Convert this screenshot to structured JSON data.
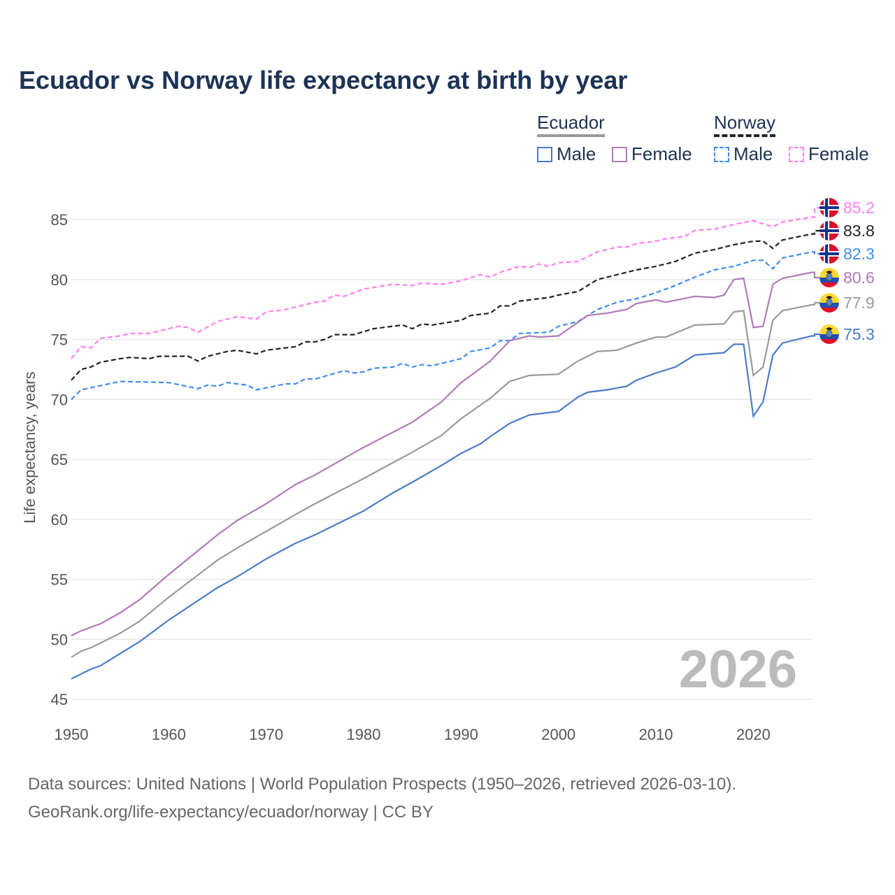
{
  "chart_data": {
    "type": "line",
    "title": "Ecuador vs Norway life expectancy at birth by year",
    "xlabel": "",
    "ylabel": "Life expectancy, years",
    "xlim": [
      1950,
      2026
    ],
    "ylim": [
      45,
      85
    ],
    "x_ticks": [
      "1950",
      "1960",
      "1970",
      "1980",
      "1990",
      "2000",
      "2010",
      "2020"
    ],
    "y_ticks": [
      "45",
      "50",
      "55",
      "60",
      "65",
      "70",
      "75",
      "80",
      "85"
    ],
    "grid": true,
    "year_watermark": "2026",
    "legend": {
      "placement": "top-right",
      "groups": [
        {
          "country": "Ecuador",
          "items": [
            "Male",
            "Female"
          ]
        },
        {
          "country": "Norway",
          "items": [
            "Male",
            "Female"
          ]
        }
      ]
    },
    "series": [
      {
        "name": "Norway Female",
        "country": "Norway",
        "color": "#ff80ee",
        "dashed": true,
        "end_label": "85.2",
        "points": [
          [
            1950,
            73.4
          ],
          [
            1951,
            74.4
          ],
          [
            1952,
            74.3
          ],
          [
            1953,
            75.1
          ],
          [
            1955,
            75.3
          ],
          [
            1956,
            75.5
          ],
          [
            1958,
            75.5
          ],
          [
            1961,
            76.1
          ],
          [
            1962,
            76.0
          ],
          [
            1963,
            75.6
          ],
          [
            1965,
            76.5
          ],
          [
            1967,
            76.9
          ],
          [
            1969,
            76.7
          ],
          [
            1970,
            77.3
          ],
          [
            1972,
            77.5
          ],
          [
            1975,
            78.1
          ],
          [
            1976,
            78.2
          ],
          [
            1977,
            78.7
          ],
          [
            1978,
            78.6
          ],
          [
            1980,
            79.2
          ],
          [
            1983,
            79.6
          ],
          [
            1985,
            79.5
          ],
          [
            1986,
            79.7
          ],
          [
            1988,
            79.6
          ],
          [
            1990,
            79.9
          ],
          [
            1992,
            80.4
          ],
          [
            1993,
            80.2
          ],
          [
            1994,
            80.6
          ],
          [
            1996,
            81.1
          ],
          [
            1997,
            81.0
          ],
          [
            1998,
            81.3
          ],
          [
            1999,
            81.1
          ],
          [
            2000,
            81.4
          ],
          [
            2002,
            81.5
          ],
          [
            2004,
            82.3
          ],
          [
            2006,
            82.7
          ],
          [
            2007,
            82.7
          ],
          [
            2008,
            83.0
          ],
          [
            2010,
            83.2
          ],
          [
            2011,
            83.4
          ],
          [
            2013,
            83.6
          ],
          [
            2014,
            84.1
          ],
          [
            2016,
            84.2
          ],
          [
            2018,
            84.6
          ],
          [
            2020,
            84.9
          ],
          [
            2022,
            84.4
          ],
          [
            2023,
            84.8
          ],
          [
            2026,
            85.2
          ]
        ]
      },
      {
        "name": "Norway Total",
        "country": "Norway",
        "color": "#222222",
        "dashed": true,
        "end_label": "83.8",
        "points": [
          [
            1950,
            71.6
          ],
          [
            1951,
            72.5
          ],
          [
            1952,
            72.7
          ],
          [
            1953,
            73.1
          ],
          [
            1955,
            73.4
          ],
          [
            1956,
            73.5
          ],
          [
            1958,
            73.4
          ],
          [
            1959,
            73.6
          ],
          [
            1962,
            73.6
          ],
          [
            1963,
            73.2
          ],
          [
            1964,
            73.6
          ],
          [
            1966,
            74.0
          ],
          [
            1967,
            74.1
          ],
          [
            1969,
            73.8
          ],
          [
            1970,
            74.1
          ],
          [
            1973,
            74.4
          ],
          [
            1974,
            74.8
          ],
          [
            1975,
            74.8
          ],
          [
            1976,
            75.0
          ],
          [
            1977,
            75.4
          ],
          [
            1979,
            75.4
          ],
          [
            1981,
            75.9
          ],
          [
            1984,
            76.2
          ],
          [
            1985,
            75.9
          ],
          [
            1986,
            76.3
          ],
          [
            1987,
            76.2
          ],
          [
            1990,
            76.6
          ],
          [
            1991,
            77.0
          ],
          [
            1993,
            77.2
          ],
          [
            1994,
            77.8
          ],
          [
            1995,
            77.8
          ],
          [
            1996,
            78.2
          ],
          [
            1998,
            78.4
          ],
          [
            1999,
            78.5
          ],
          [
            2000,
            78.7
          ],
          [
            2002,
            79.0
          ],
          [
            2004,
            80.0
          ],
          [
            2006,
            80.4
          ],
          [
            2008,
            80.8
          ],
          [
            2010,
            81.1
          ],
          [
            2012,
            81.5
          ],
          [
            2014,
            82.2
          ],
          [
            2016,
            82.5
          ],
          [
            2018,
            82.9
          ],
          [
            2020,
            83.2
          ],
          [
            2021,
            83.2
          ],
          [
            2022,
            82.6
          ],
          [
            2023,
            83.3
          ],
          [
            2026,
            83.8
          ]
        ]
      },
      {
        "name": "Norway Male",
        "country": "Norway",
        "color": "#3d8ef0",
        "dashed": true,
        "end_label": "82.3",
        "points": [
          [
            1950,
            70.0
          ],
          [
            1951,
            70.8
          ],
          [
            1955,
            71.5
          ],
          [
            1960,
            71.4
          ],
          [
            1963,
            70.9
          ],
          [
            1964,
            71.2
          ],
          [
            1965,
            71.1
          ],
          [
            1966,
            71.4
          ],
          [
            1968,
            71.2
          ],
          [
            1969,
            70.8
          ],
          [
            1972,
            71.3
          ],
          [
            1973,
            71.3
          ],
          [
            1974,
            71.7
          ],
          [
            1975,
            71.7
          ],
          [
            1978,
            72.4
          ],
          [
            1979,
            72.2
          ],
          [
            1980,
            72.3
          ],
          [
            1981,
            72.6
          ],
          [
            1983,
            72.7
          ],
          [
            1984,
            73.0
          ],
          [
            1985,
            72.7
          ],
          [
            1986,
            72.9
          ],
          [
            1987,
            72.8
          ],
          [
            1990,
            73.4
          ],
          [
            1991,
            74.0
          ],
          [
            1993,
            74.3
          ],
          [
            1994,
            74.9
          ],
          [
            1995,
            74.9
          ],
          [
            1996,
            75.5
          ],
          [
            1999,
            75.6
          ],
          [
            2000,
            76.1
          ],
          [
            2002,
            76.5
          ],
          [
            2004,
            77.5
          ],
          [
            2006,
            78.1
          ],
          [
            2008,
            78.4
          ],
          [
            2010,
            78.9
          ],
          [
            2012,
            79.5
          ],
          [
            2014,
            80.2
          ],
          [
            2016,
            80.8
          ],
          [
            2018,
            81.1
          ],
          [
            2020,
            81.6
          ],
          [
            2021,
            81.6
          ],
          [
            2022,
            80.9
          ],
          [
            2023,
            81.8
          ],
          [
            2026,
            82.3
          ]
        ]
      },
      {
        "name": "Ecuador Female",
        "country": "Ecuador",
        "color": "#b07ab8",
        "dashed": false,
        "end_label": "80.6",
        "points": [
          [
            1950,
            50.3
          ],
          [
            1951,
            50.7
          ],
          [
            1953,
            51.3
          ],
          [
            1955,
            52.2
          ],
          [
            1957,
            53.3
          ],
          [
            1960,
            55.4
          ],
          [
            1965,
            58.7
          ],
          [
            1967,
            59.9
          ],
          [
            1970,
            61.3
          ],
          [
            1973,
            62.9
          ],
          [
            1975,
            63.7
          ],
          [
            1980,
            66.0
          ],
          [
            1985,
            68.1
          ],
          [
            1988,
            69.8
          ],
          [
            1990,
            71.4
          ],
          [
            1992,
            72.6
          ],
          [
            1993,
            73.2
          ],
          [
            1995,
            74.9
          ],
          [
            1997,
            75.3
          ],
          [
            1998,
            75.2
          ],
          [
            2000,
            75.3
          ],
          [
            2003,
            77.0
          ],
          [
            2005,
            77.2
          ],
          [
            2007,
            77.5
          ],
          [
            2008,
            78.0
          ],
          [
            2010,
            78.3
          ],
          [
            2011,
            78.1
          ],
          [
            2014,
            78.6
          ],
          [
            2016,
            78.5
          ],
          [
            2017,
            78.7
          ],
          [
            2018,
            80.0
          ],
          [
            2019,
            80.1
          ],
          [
            2020,
            76.0
          ],
          [
            2021,
            76.1
          ],
          [
            2022,
            79.6
          ],
          [
            2023,
            80.1
          ],
          [
            2026,
            80.6
          ]
        ]
      },
      {
        "name": "Ecuador Total",
        "country": "Ecuador",
        "color": "#999999",
        "dashed": false,
        "end_label": "77.9",
        "points": [
          [
            1950,
            48.5
          ],
          [
            1951,
            49.0
          ],
          [
            1952,
            49.3
          ],
          [
            1955,
            50.5
          ],
          [
            1957,
            51.5
          ],
          [
            1960,
            53.5
          ],
          [
            1965,
            56.6
          ],
          [
            1967,
            57.6
          ],
          [
            1970,
            59.0
          ],
          [
            1973,
            60.4
          ],
          [
            1975,
            61.3
          ],
          [
            1980,
            63.4
          ],
          [
            1985,
            65.6
          ],
          [
            1988,
            67.0
          ],
          [
            1990,
            68.4
          ],
          [
            1993,
            70.1
          ],
          [
            1995,
            71.5
          ],
          [
            1997,
            72.0
          ],
          [
            2000,
            72.1
          ],
          [
            2002,
            73.2
          ],
          [
            2004,
            74.0
          ],
          [
            2006,
            74.1
          ],
          [
            2008,
            74.7
          ],
          [
            2010,
            75.2
          ],
          [
            2011,
            75.2
          ],
          [
            2014,
            76.2
          ],
          [
            2017,
            76.3
          ],
          [
            2018,
            77.3
          ],
          [
            2019,
            77.4
          ],
          [
            2020,
            72.0
          ],
          [
            2021,
            72.7
          ],
          [
            2022,
            76.6
          ],
          [
            2023,
            77.4
          ],
          [
            2026,
            77.9
          ]
        ]
      },
      {
        "name": "Ecuador Male",
        "country": "Ecuador",
        "color": "#4a7cc8",
        "dashed": false,
        "end_label": "75.3",
        "points": [
          [
            1950,
            46.7
          ],
          [
            1952,
            47.5
          ],
          [
            1953,
            47.8
          ],
          [
            1955,
            48.8
          ],
          [
            1957,
            49.8
          ],
          [
            1960,
            51.6
          ],
          [
            1965,
            54.3
          ],
          [
            1967,
            55.2
          ],
          [
            1970,
            56.7
          ],
          [
            1973,
            58.0
          ],
          [
            1975,
            58.7
          ],
          [
            1980,
            60.7
          ],
          [
            1983,
            62.2
          ],
          [
            1985,
            63.1
          ],
          [
            1988,
            64.5
          ],
          [
            1990,
            65.5
          ],
          [
            1992,
            66.3
          ],
          [
            1993,
            66.9
          ],
          [
            1995,
            68.0
          ],
          [
            1997,
            68.7
          ],
          [
            2000,
            69.0
          ],
          [
            2002,
            70.2
          ],
          [
            2003,
            70.6
          ],
          [
            2005,
            70.8
          ],
          [
            2007,
            71.1
          ],
          [
            2008,
            71.6
          ],
          [
            2010,
            72.2
          ],
          [
            2012,
            72.7
          ],
          [
            2014,
            73.7
          ],
          [
            2017,
            73.9
          ],
          [
            2018,
            74.6
          ],
          [
            2019,
            74.6
          ],
          [
            2020,
            68.6
          ],
          [
            2021,
            69.8
          ],
          [
            2022,
            73.7
          ],
          [
            2023,
            74.7
          ],
          [
            2026,
            75.3
          ]
        ]
      }
    ]
  },
  "source": {
    "line1": "Data sources: United Nations | World Population Prospects (1950–2026, retrieved 2026-03-10).",
    "line2": "GeoRank.org/life-expectancy/ecuador/norway | CC BY"
  }
}
